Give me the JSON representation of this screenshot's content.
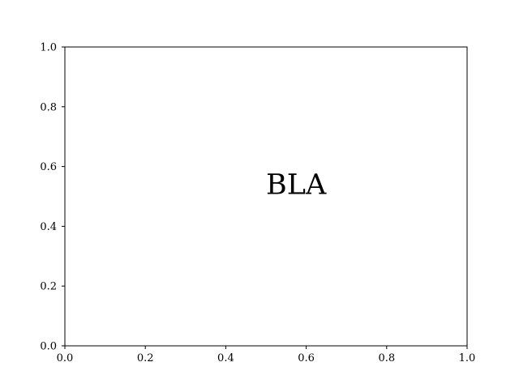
{
  "chart_data": {
    "type": "scatter",
    "title": "",
    "xlabel": "",
    "ylabel": "",
    "xlim": [
      0.0,
      1.0
    ],
    "ylim": [
      0.0,
      1.0
    ],
    "xticks": [
      "0.0",
      "0.2",
      "0.4",
      "0.6",
      "0.8",
      "1.0"
    ],
    "yticks": [
      "0.0",
      "0.2",
      "0.4",
      "0.6",
      "0.8",
      "1.0"
    ],
    "grid": false,
    "series": [],
    "annotations": [
      {
        "text": "BLA",
        "x": 0.5,
        "y": 0.5
      }
    ],
    "colors": {
      "axis": "#000000",
      "text": "#000000",
      "background": "#ffffff"
    }
  }
}
